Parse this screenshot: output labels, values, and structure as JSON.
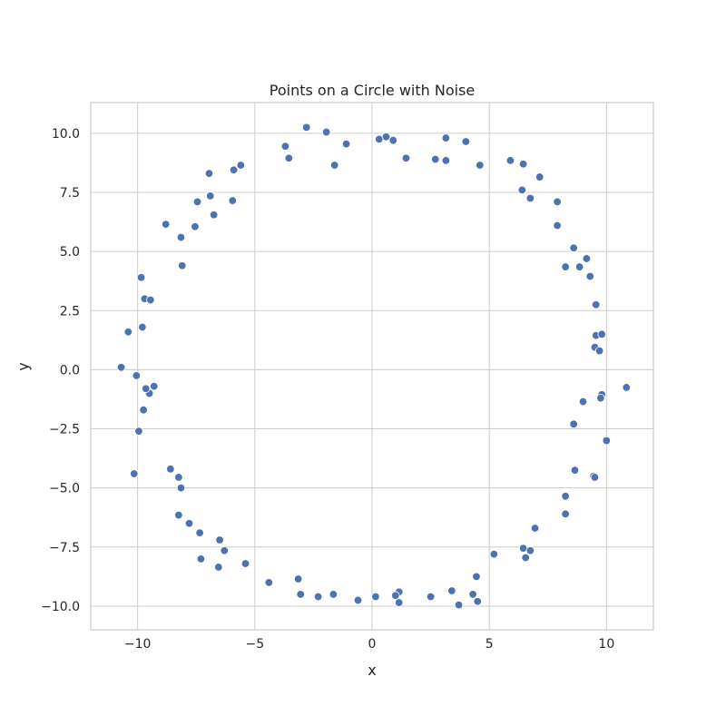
{
  "chart_data": {
    "type": "scatter",
    "title": "Points on a Circle with Noise",
    "xlabel": "x",
    "ylabel": "y",
    "xlim": [
      -12,
      12
    ],
    "ylim": [
      -11,
      11.3
    ],
    "xticks": [
      -10,
      -5,
      0,
      5,
      10
    ],
    "xtick_labels": [
      "−10",
      "−5",
      "0",
      "5",
      "10"
    ],
    "yticks": [
      -10,
      -7.5,
      -5,
      -2.5,
      0,
      2.5,
      5,
      7.5,
      10
    ],
    "ytick_labels": [
      "−10.0",
      "−7.5",
      "−5.0",
      "−2.5",
      "0.0",
      "2.5",
      "5.0",
      "7.5",
      "10.0"
    ],
    "grid": true,
    "color": "#4c72b0",
    "points": [
      [
        -2.8,
        10.25
      ],
      [
        -1.95,
        10.05
      ],
      [
        -3.7,
        9.45
      ],
      [
        -3.55,
        8.95
      ],
      [
        -1.1,
        9.55
      ],
      [
        -1.6,
        8.65
      ],
      [
        0.3,
        9.75
      ],
      [
        0.6,
        9.85
      ],
      [
        0.9,
        9.7
      ],
      [
        1.45,
        8.95
      ],
      [
        2.7,
        8.9
      ],
      [
        3.15,
        9.8
      ],
      [
        3.15,
        8.85
      ],
      [
        4.0,
        9.65
      ],
      [
        4.6,
        8.65
      ],
      [
        5.9,
        8.85
      ],
      [
        6.45,
        8.7
      ],
      [
        7.15,
        8.15
      ],
      [
        6.4,
        7.6
      ],
      [
        6.75,
        7.25
      ],
      [
        7.9,
        7.1
      ],
      [
        7.9,
        6.1
      ],
      [
        8.6,
        5.15
      ],
      [
        8.25,
        4.35
      ],
      [
        8.85,
        4.35
      ],
      [
        9.15,
        4.7
      ],
      [
        9.3,
        3.95
      ],
      [
        9.55,
        2.75
      ],
      [
        9.55,
        1.45
      ],
      [
        9.8,
        1.5
      ],
      [
        9.5,
        0.95
      ],
      [
        9.7,
        0.8
      ],
      [
        10.85,
        -0.75
      ],
      [
        9.8,
        -1.05
      ],
      [
        9.75,
        -1.2
      ],
      [
        9.0,
        -1.35
      ],
      [
        8.6,
        -2.3
      ],
      [
        10.0,
        -3.0
      ],
      [
        8.65,
        -4.25
      ],
      [
        9.45,
        -4.5
      ],
      [
        9.5,
        -4.55
      ],
      [
        8.25,
        -5.35
      ],
      [
        8.25,
        -6.1
      ],
      [
        6.95,
        -6.7
      ],
      [
        6.45,
        -7.55
      ],
      [
        6.75,
        -7.65
      ],
      [
        6.55,
        -7.95
      ],
      [
        5.2,
        -7.8
      ],
      [
        4.45,
        -8.75
      ],
      [
        3.4,
        -9.35
      ],
      [
        4.3,
        -9.5
      ],
      [
        4.5,
        -9.8
      ],
      [
        3.7,
        -9.95
      ],
      [
        2.5,
        -9.6
      ],
      [
        1.15,
        -9.4
      ],
      [
        1.0,
        -9.55
      ],
      [
        1.15,
        -9.85
      ],
      [
        0.15,
        -9.6
      ],
      [
        -0.6,
        -9.75
      ],
      [
        -1.65,
        -9.5
      ],
      [
        -2.3,
        -9.6
      ],
      [
        -3.05,
        -9.5
      ],
      [
        -3.15,
        -8.85
      ],
      [
        -4.4,
        -9.0
      ],
      [
        -5.4,
        -8.2
      ],
      [
        -6.55,
        -8.35
      ],
      [
        -7.3,
        -8.0
      ],
      [
        -6.3,
        -7.65
      ],
      [
        -6.5,
        -7.2
      ],
      [
        -7.35,
        -6.9
      ],
      [
        -7.8,
        -6.5
      ],
      [
        -8.25,
        -6.15
      ],
      [
        -8.15,
        -5.0
      ],
      [
        -8.25,
        -4.55
      ],
      [
        -8.6,
        -4.2
      ],
      [
        -10.15,
        -4.4
      ],
      [
        -9.95,
        -2.6
      ],
      [
        -9.75,
        -1.7
      ],
      [
        -9.5,
        -1.0
      ],
      [
        -9.65,
        -0.8
      ],
      [
        -9.3,
        -0.7
      ],
      [
        -10.05,
        -0.25
      ],
      [
        -10.7,
        0.1
      ],
      [
        -10.4,
        1.6
      ],
      [
        -9.8,
        1.8
      ],
      [
        -9.7,
        3.0
      ],
      [
        -9.45,
        2.95
      ],
      [
        -9.85,
        3.9
      ],
      [
        -8.1,
        4.4
      ],
      [
        -8.15,
        5.6
      ],
      [
        -7.55,
        6.05
      ],
      [
        -8.8,
        6.15
      ],
      [
        -6.75,
        6.55
      ],
      [
        -7.45,
        7.1
      ],
      [
        -6.9,
        7.35
      ],
      [
        -5.95,
        7.15
      ],
      [
        -6.95,
        8.3
      ],
      [
        -5.9,
        8.45
      ],
      [
        -5.6,
        8.65
      ]
    ]
  }
}
